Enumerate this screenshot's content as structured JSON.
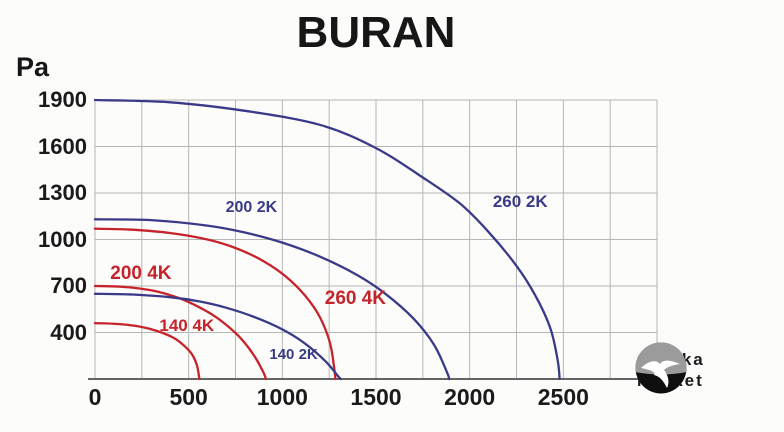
{
  "chart_data": {
    "type": "line",
    "title": "BURAN",
    "ylabel": "Pa",
    "xlabel": "",
    "xlim": [
      0,
      3000
    ],
    "ylim": [
      100,
      1900
    ],
    "grid": {
      "x_step": 250,
      "y_step": 300,
      "on": true
    },
    "x_ticks": [
      0,
      500,
      1000,
      1500,
      2000,
      2500
    ],
    "y_ticks": [
      1900,
      1600,
      1300,
      1000,
      700,
      400
    ],
    "legend_position": "inline-labels",
    "series": [
      {
        "name": "260 2K",
        "color": "#3a3b88",
        "label_size": 17,
        "label_at": [
          2270,
          1240
        ],
        "points": [
          [
            0,
            1900
          ],
          [
            400,
            1885
          ],
          [
            800,
            1830
          ],
          [
            1200,
            1740
          ],
          [
            1500,
            1590
          ],
          [
            1750,
            1400
          ],
          [
            1950,
            1230
          ],
          [
            2100,
            1050
          ],
          [
            2250,
            830
          ],
          [
            2350,
            640
          ],
          [
            2430,
            430
          ],
          [
            2470,
            220
          ],
          [
            2480,
            100
          ]
        ]
      },
      {
        "name": "200 2K",
        "color": "#3a3b88",
        "label_size": 16,
        "label_at": [
          835,
          1200
        ],
        "points": [
          [
            0,
            1130
          ],
          [
            300,
            1125
          ],
          [
            600,
            1090
          ],
          [
            800,
            1045
          ],
          [
            1000,
            980
          ],
          [
            1200,
            890
          ],
          [
            1400,
            770
          ],
          [
            1550,
            650
          ],
          [
            1700,
            490
          ],
          [
            1810,
            320
          ],
          [
            1880,
            140
          ],
          [
            1890,
            100
          ]
        ]
      },
      {
        "name": "260 4K",
        "color": "#c6242c",
        "label_size": 19,
        "label_at": [
          1390,
          610
        ],
        "points": [
          [
            0,
            1070
          ],
          [
            200,
            1063
          ],
          [
            400,
            1042
          ],
          [
            600,
            1000
          ],
          [
            750,
            945
          ],
          [
            900,
            860
          ],
          [
            1020,
            760
          ],
          [
            1120,
            640
          ],
          [
            1200,
            500
          ],
          [
            1255,
            330
          ],
          [
            1278,
            160
          ],
          [
            1283,
            100
          ]
        ]
      },
      {
        "name": "200 4K",
        "color": "#c6242c",
        "label_size": 19,
        "label_at": [
          245,
          770
        ],
        "points": [
          [
            0,
            700
          ],
          [
            150,
            695
          ],
          [
            300,
            672
          ],
          [
            430,
            630
          ],
          [
            520,
            585
          ],
          [
            620,
            520
          ],
          [
            700,
            450
          ],
          [
            780,
            360
          ],
          [
            850,
            250
          ],
          [
            900,
            140
          ],
          [
            912,
            100
          ]
        ]
      },
      {
        "name": "140 2K",
        "color": "#3a3b88",
        "label_size": 15,
        "label_at": [
          1060,
          250
        ],
        "points": [
          [
            0,
            650
          ],
          [
            200,
            645
          ],
          [
            400,
            628
          ],
          [
            560,
            600
          ],
          [
            700,
            560
          ],
          [
            850,
            500
          ],
          [
            1000,
            420
          ],
          [
            1120,
            330
          ],
          [
            1230,
            215
          ],
          [
            1300,
            115
          ],
          [
            1312,
            100
          ]
        ]
      },
      {
        "name": "140 4K",
        "color": "#c6242c",
        "label_size": 17,
        "label_at": [
          490,
          440
        ],
        "points": [
          [
            0,
            460
          ],
          [
            120,
            455
          ],
          [
            240,
            438
          ],
          [
            330,
            410
          ],
          [
            420,
            365
          ],
          [
            480,
            310
          ],
          [
            520,
            255
          ],
          [
            545,
            185
          ],
          [
            557,
            100
          ]
        ]
      }
    ],
    "colors": {
      "grid": "#b6b6b6",
      "axis": "#4f4f4f",
      "text": "#1a1a1a",
      "blue_series": "#3a3b88",
      "red_series": "#c6242c"
    }
  },
  "watermark": {
    "line1": "Chaika",
    "line2": "Market",
    "icon": "seagull-logo"
  }
}
